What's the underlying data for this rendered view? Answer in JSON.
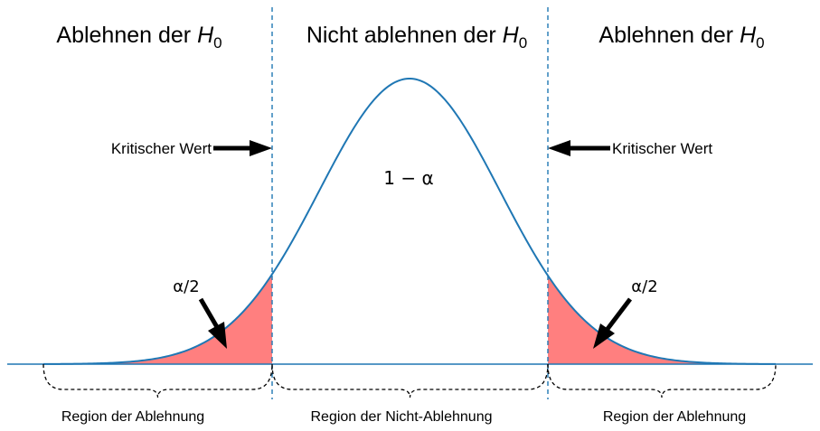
{
  "headings": {
    "left": {
      "text": "Ablehnen der ",
      "symbol": "H",
      "subscript": "0"
    },
    "middle": {
      "text": "Nicht ablehnen der ",
      "symbol": "H",
      "subscript": "0"
    },
    "right": {
      "text": "Ablehnen der ",
      "symbol": "H",
      "subscript": "0"
    }
  },
  "critical_value": {
    "left": "Kritischer Wert",
    "right": "Kritischer Wert"
  },
  "center_annotation": "1 − α",
  "tail_annotation": {
    "left": "α/2",
    "right": "α/2"
  },
  "regions": {
    "left": "Region der Ablehnung",
    "middle": "Region der Nicht-Ablehnung",
    "right": "Region der Ablehnung"
  },
  "colors": {
    "curve": "#1f77b4",
    "rejection_fill": "#ff7f7f",
    "divider": "#1f77b4",
    "arrow": "#000000",
    "brace": "#000000"
  }
}
